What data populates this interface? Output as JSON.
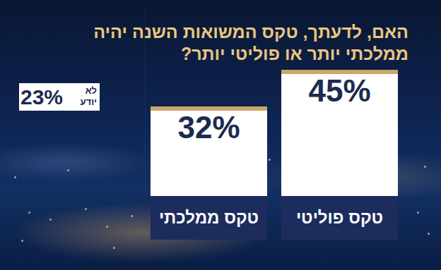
{
  "chart_data": {
    "type": "bar",
    "title": "האם, לדעתך, טקס המשואות השנה יהיה ממלכתי יותר או פוליטי יותר?",
    "categories": [
      "טקס פוליטי",
      "טקס ממלכתי"
    ],
    "values": [
      45,
      32
    ],
    "value_labels": [
      "45%",
      "32%"
    ],
    "color": "#ffffff",
    "ylim": [
      0,
      68
    ],
    "data_labels": true,
    "tick_labels": false,
    "annotations": [
      {
        "text": "לא יודע",
        "value": 23,
        "value_label": "23%"
      }
    ]
  }
}
